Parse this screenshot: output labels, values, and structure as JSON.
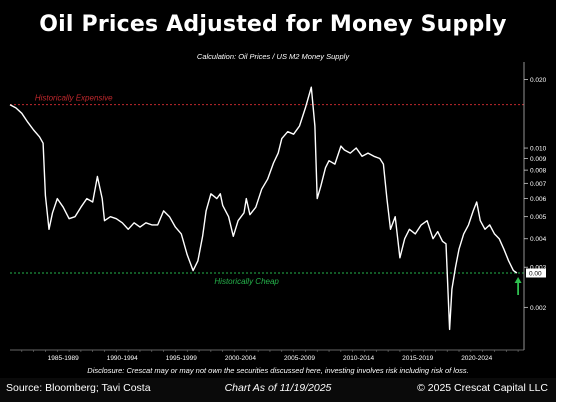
{
  "title": "Oil Prices Adjusted for Money Supply",
  "subtitle": "Calculation: Oil Prices / US M2 Money Supply",
  "disclaimer": "Disclosure: Crescat may or may not own the securities discussed here, investing involves risk including risk of loss.",
  "footer": {
    "source": "Source: Bloomberg; Tavi Costa",
    "as_of": "Chart As of 11/19/2025",
    "copyright": "© 2025 Crescat Capital LLC"
  },
  "colors": {
    "background": "#000000",
    "series": "#ffffff",
    "expensive": "#c0282d",
    "cheap": "#25b34b",
    "arrow": "#2fbf4f"
  },
  "chart_data": {
    "type": "line",
    "scale": "log",
    "grid": false,
    "title": "Oil Prices Adjusted for Money Supply",
    "subtitle": "Calculation: Oil Prices / US M2 Money Supply",
    "x_tick_labels": [
      "1985-1989",
      "1990-1994",
      "1995-1999",
      "2000-2004",
      "2005-2009",
      "2010-2014",
      "2015-2019",
      "2020-2024"
    ],
    "y_tick_labels": [
      "0.020",
      "0.010",
      "0.009",
      "0.008",
      "0.007",
      "0.006",
      "0.005",
      "0.004",
      "0.003",
      "0.002"
    ],
    "y_ticks": [
      0.02,
      0.01,
      0.009,
      0.008,
      0.007,
      0.006,
      0.005,
      0.004,
      0.003,
      0.002
    ],
    "ylim": [
      0.0013,
      0.022
    ],
    "xlim": [
      1983.0,
      2026.5
    ],
    "last_value_label": "0.00",
    "last_value": 0.00283,
    "annotations": [
      {
        "label": "Historically Expensive",
        "y": 0.0155,
        "color": "#c0282d"
      },
      {
        "label": "Historically Cheap",
        "y": 0.00283,
        "color": "#25b34b"
      }
    ],
    "series": [
      {
        "x": [
          1983.0,
          1983.5,
          1984.0,
          1984.5,
          1985.0,
          1985.5,
          1985.8,
          1986.0,
          1986.3,
          1986.6,
          1987.0,
          1987.5,
          1988.0,
          1988.5,
          1989.0,
          1989.5,
          1990.0,
          1990.4,
          1990.8,
          1991.0,
          1991.5,
          1992.0,
          1992.5,
          1993.0,
          1993.5,
          1994.0,
          1994.5,
          1995.0,
          1995.5,
          1996.0,
          1996.5,
          1997.0,
          1997.5,
          1998.0,
          1998.5,
          1998.9,
          1999.3,
          1999.6,
          2000.0,
          2000.5,
          2000.8,
          2001.0,
          2001.5,
          2001.9,
          2002.3,
          2002.8,
          2003.0,
          2003.3,
          2003.8,
          2004.3,
          2004.8,
          2005.3,
          2005.7,
          2006.0,
          2006.5,
          2007.0,
          2007.5,
          2008.0,
          2008.5,
          2008.8,
          2009.0,
          2009.3,
          2009.7,
          2010.0,
          2010.5,
          2011.0,
          2011.3,
          2011.8,
          2012.3,
          2012.8,
          2013.3,
          2013.8,
          2014.3,
          2014.6,
          2014.9,
          2015.2,
          2015.6,
          2016.0,
          2016.4,
          2016.8,
          2017.3,
          2017.8,
          2018.3,
          2018.8,
          2019.2,
          2019.6,
          2019.9,
          2020.2,
          2020.4,
          2020.7,
          2021.0,
          2021.4,
          2021.8,
          2022.2,
          2022.5,
          2022.8,
          2023.2,
          2023.6,
          2024.0,
          2024.4,
          2024.8,
          2025.2,
          2025.6,
          2025.9
        ],
        "values": [
          0.0155,
          0.015,
          0.0142,
          0.013,
          0.012,
          0.0112,
          0.0105,
          0.0062,
          0.0044,
          0.0052,
          0.006,
          0.0055,
          0.0049,
          0.005,
          0.0055,
          0.006,
          0.0058,
          0.0075,
          0.006,
          0.0048,
          0.005,
          0.0049,
          0.0047,
          0.0044,
          0.0047,
          0.0045,
          0.0047,
          0.0046,
          0.0046,
          0.0053,
          0.005,
          0.0045,
          0.0042,
          0.0034,
          0.0029,
          0.0032,
          0.0041,
          0.0053,
          0.0063,
          0.006,
          0.0063,
          0.0056,
          0.005,
          0.0041,
          0.0048,
          0.0052,
          0.006,
          0.0051,
          0.0055,
          0.0066,
          0.0073,
          0.0086,
          0.0095,
          0.011,
          0.0118,
          0.0115,
          0.0125,
          0.015,
          0.0185,
          0.0125,
          0.006,
          0.0068,
          0.0082,
          0.0088,
          0.0085,
          0.0102,
          0.0098,
          0.0095,
          0.01,
          0.0092,
          0.0095,
          0.0092,
          0.009,
          0.0085,
          0.006,
          0.0044,
          0.005,
          0.0033,
          0.004,
          0.0044,
          0.0042,
          0.0046,
          0.0048,
          0.004,
          0.0043,
          0.0039,
          0.0038,
          0.0016,
          0.0024,
          0.003,
          0.0036,
          0.0042,
          0.0046,
          0.0053,
          0.0058,
          0.0048,
          0.0044,
          0.0046,
          0.0042,
          0.004,
          0.0036,
          0.0032,
          0.0029,
          0.00283
        ]
      }
    ]
  }
}
